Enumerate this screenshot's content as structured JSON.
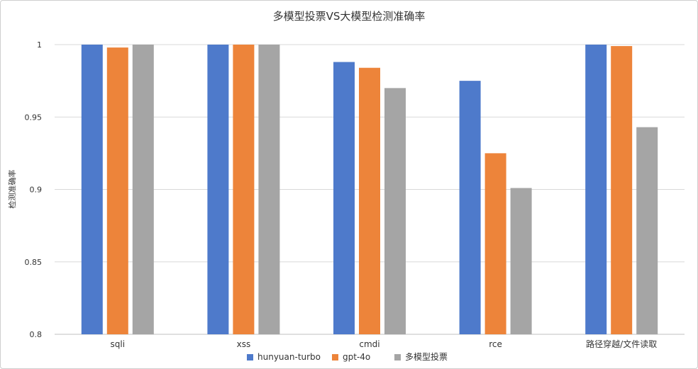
{
  "chart_data": {
    "type": "bar",
    "title": "多模型投票VS大模型检测准确率",
    "ylabel": "检测准确率",
    "xlabel": "",
    "ylim": [
      0.8,
      1.0
    ],
    "yticks": [
      "1",
      "0.95",
      "0.9",
      "0.85",
      "0.8"
    ],
    "ytick_values": [
      1.0,
      0.95,
      0.9,
      0.85,
      0.8
    ],
    "categories": [
      "sqli",
      "xss",
      "cmdi",
      "rce",
      "路径穿越/文件读取"
    ],
    "series": [
      {
        "name": "hunyuan-turbo",
        "color": "#4E7ACB",
        "values": [
          1.0,
          1.0,
          0.988,
          0.975,
          1.0
        ]
      },
      {
        "name": "gpt-4o",
        "color": "#ED843A",
        "values": [
          0.998,
          1.0,
          0.984,
          0.925,
          0.999
        ]
      },
      {
        "name": "多模型投票",
        "color": "#A5A5A5",
        "values": [
          1.0,
          1.0,
          0.97,
          0.901,
          0.943
        ]
      }
    ],
    "grid": true,
    "legend_position": "bottom"
  }
}
